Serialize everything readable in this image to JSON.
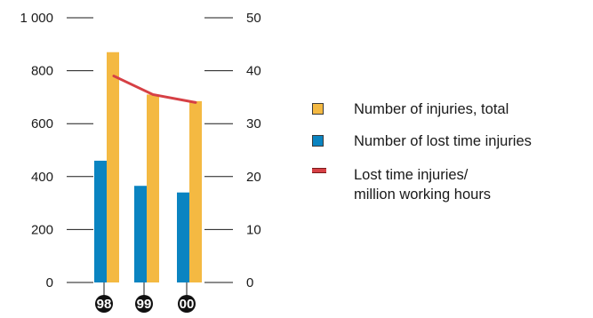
{
  "chart_data": {
    "type": "bar+line",
    "categories": [
      "98",
      "99",
      "00"
    ],
    "series": [
      {
        "name": "Number of injuries, total",
        "type": "bar",
        "axis": "left",
        "color": "#F4B942",
        "values": [
          870,
          710,
          685
        ]
      },
      {
        "name": "Number of lost time injuries",
        "type": "bar",
        "axis": "left",
        "color": "#0A84C1",
        "values": [
          460,
          365,
          340
        ]
      },
      {
        "name": "Lost time injuries/ million working hours",
        "type": "line",
        "axis": "right",
        "color": "#D64045",
        "values": [
          39,
          35.5,
          34
        ]
      }
    ],
    "y_left": {
      "ticks": [
        "0",
        "200",
        "400",
        "600",
        "800",
        "1 000"
      ],
      "min": 0,
      "max": 1000
    },
    "y_right": {
      "ticks": [
        "0",
        "10",
        "20",
        "30",
        "40",
        "50"
      ],
      "min": 0,
      "max": 50
    },
    "legend": {
      "position": "right",
      "items": [
        {
          "label": "Number of injuries, total",
          "color": "#F4B942",
          "shape": "square"
        },
        {
          "label": "Number of lost time injuries",
          "color": "#0A84C1",
          "shape": "square"
        },
        {
          "label_line1": "Lost time injuries/",
          "label_line2": "million working hours",
          "color": "#D64045",
          "shape": "line"
        }
      ]
    },
    "grid": false
  }
}
